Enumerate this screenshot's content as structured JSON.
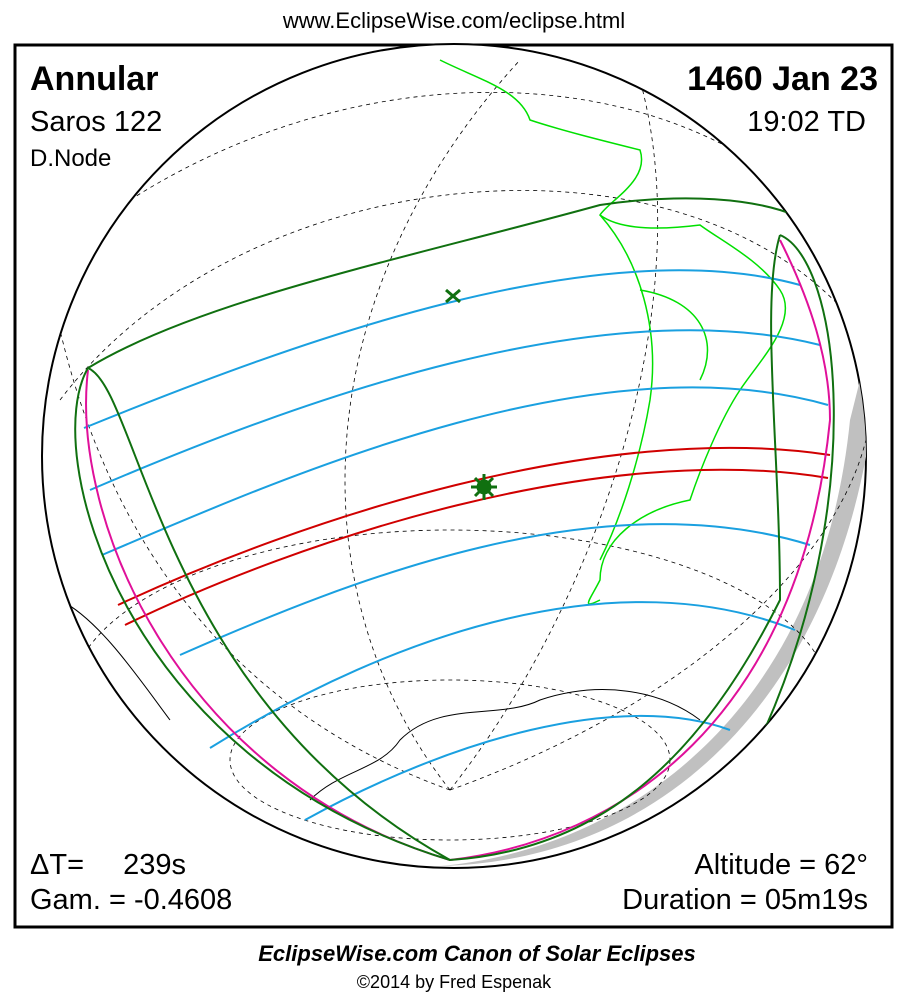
{
  "header": {
    "url": "www.EclipseWise.com/eclipse.html"
  },
  "panel": {
    "eclipse_type": "Annular",
    "saros": "Saros 122",
    "node": "D.Node",
    "date": "1460 Jan 23",
    "time": "19:02 TD",
    "delta_t_label": "ΔT=",
    "delta_t_value": "239s",
    "gamma": "Gam. = -0.4608",
    "altitude": "Altitude = 62°",
    "duration": "Duration = 05m19s"
  },
  "footer": {
    "title": "EclipseWise.com Canon of Solar Eclipses",
    "credit": "©2014 by Fred Espenak"
  }
}
